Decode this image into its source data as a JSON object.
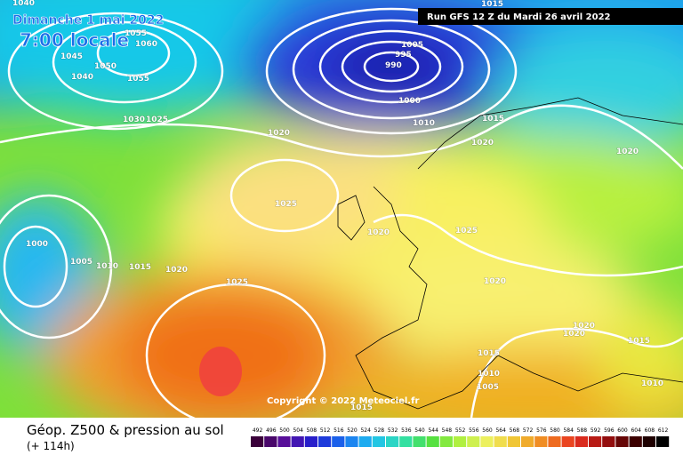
{
  "header": {
    "date": "Dimanche 1 mai 2022",
    "time": "7:00 locale",
    "run": "Run GFS 12 Z du Mardi 26 avril 2022"
  },
  "copyright": "Copyright © 2022 Meteociel.fr",
  "footer": {
    "title": "Géop. Z500 & pression au sol",
    "lead": "(+ 114h)"
  },
  "scale": [
    492,
    496,
    500,
    504,
    508,
    512,
    516,
    520,
    524,
    528,
    532,
    536,
    540,
    544,
    548,
    552,
    556,
    560,
    564,
    568,
    572,
    576,
    580,
    584,
    588,
    592,
    596,
    600,
    604,
    608,
    612
  ],
  "isobars": [
    "1040",
    "1055",
    "1060",
    "1045",
    "1050",
    "1040",
    "1055",
    "1030",
    "1025",
    "1020",
    "1005",
    "995",
    "990",
    "1000",
    "1010",
    "1015",
    "1015",
    "1020",
    "1020",
    "1025",
    "1020",
    "1025",
    "1000",
    "1005",
    "1010",
    "1015",
    "1020",
    "1025",
    "1020",
    "1020",
    "1020",
    "1015",
    "1015",
    "1010",
    "1005",
    "1010",
    "1015"
  ]
}
